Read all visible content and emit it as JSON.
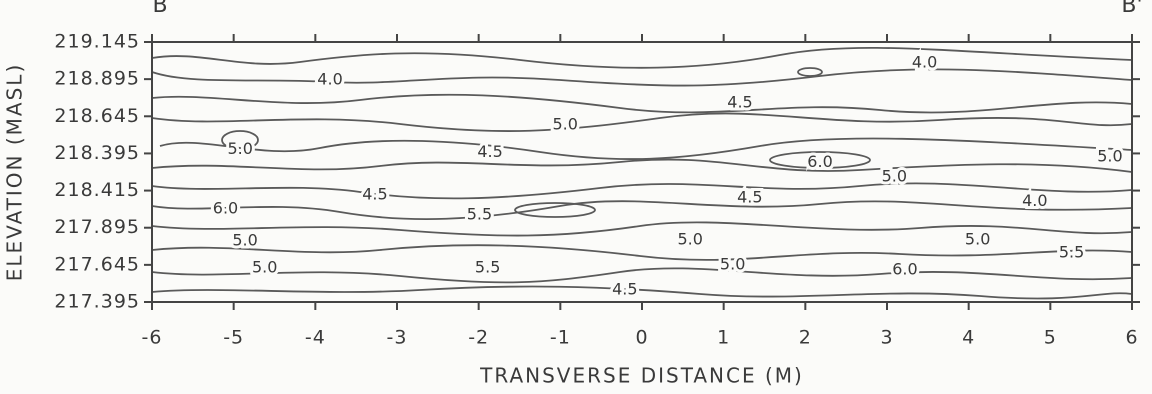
{
  "chart_data": {
    "type": "contour",
    "corner_labels": [
      "B",
      "B'"
    ],
    "x_label": "TRANSVERSE DISTANCE (M)",
    "y_label": "ELEVATION (MASL)",
    "xlim": [
      -6,
      6
    ],
    "xticks": [
      -6,
      -5,
      -4,
      -3,
      -2,
      -1,
      0,
      1,
      2,
      3,
      4,
      5,
      6
    ],
    "y_categories": [
      "217.395",
      "217.645",
      "217.895",
      "218.415",
      "218.395",
      "218.645",
      "218.895",
      "219.145"
    ],
    "contour_labels": {
      "x": [
        -3.82,
        3.46,
        1.2,
        -0.94,
        -4.92,
        -1.86,
        2.18,
        5.73,
        3.09,
        -3.27,
        1.32,
        4.81,
        -5.1,
        -1.99,
        -4.86,
        0.59,
        4.11,
        5.26,
        -4.62,
        -1.89,
        1.11,
        3.22,
        -0.21
      ],
      "y": [
        5.98,
        6.44,
        5.36,
        4.77,
        4.1,
        4.02,
        3.75,
        3.9,
        3.37,
        2.88,
        2.8,
        2.7,
        2.5,
        2.34,
        1.64,
        1.67,
        1.67,
        1.32,
        0.92,
        0.92,
        1.0,
        0.86,
        0.32
      ],
      "values": [
        4,
        4,
        4.5,
        5,
        5,
        4.5,
        6,
        5,
        5,
        4.5,
        4.5,
        4,
        6,
        5.5,
        5,
        5,
        5,
        5.5,
        5,
        5.5,
        5,
        6,
        4.5
      ],
      "value_labels": [
        "4.0",
        "4.0",
        "4.5",
        "5.0",
        "5.0",
        "4.5",
        "6.0",
        "5.0",
        "5.0",
        "4.5",
        "4.5",
        "4.0",
        "6.0",
        "5.5",
        "5.0",
        "5.0",
        "5.0",
        "5.5",
        "5.0",
        "5.5",
        "5.0",
        "6.0",
        "4.5"
      ]
    }
  }
}
